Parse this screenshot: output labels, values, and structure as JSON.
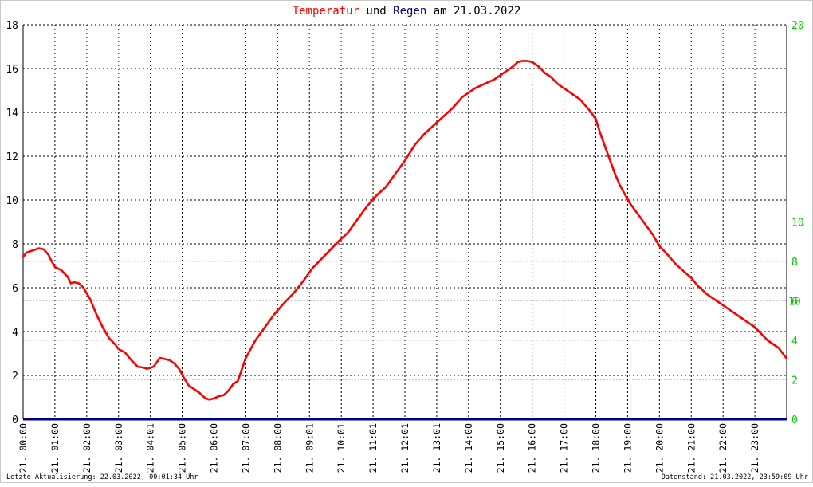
{
  "title": {
    "part1": "Temperatur",
    "part2": " und ",
    "part3": "Regen",
    "part4": " am 21.03.2022",
    "color1": "#ff0000",
    "color2": "#000000",
    "color3": "#000080",
    "color4": "#000000"
  },
  "footer": {
    "left": "Letzte Aktualisierung: 22.03.2022, 00:01:34 Uhr",
    "right": "Datenstand: 21.03.2022, 23:59:09 Uhr"
  },
  "colors": {
    "temperature": "#ff0000",
    "rain": "#00008b",
    "right_axis": "#00cc00",
    "left_axis": "#000000",
    "grid": "#000000",
    "grid_minor": "#c8c8c8"
  },
  "chart_data": {
    "type": "line",
    "x_tick_labels": [
      "21. 00:00",
      "21. 01:00",
      "21. 02:00",
      "21. 03:00",
      "21. 04:01",
      "21. 05:00",
      "21. 06:00",
      "21. 07:00",
      "21. 08:00",
      "21. 09:01",
      "21. 10:01",
      "21. 11:01",
      "21. 12:01",
      "21. 13:01",
      "21. 14:00",
      "21. 15:00",
      "21. 16:00",
      "21. 17:00",
      "21. 18:00",
      "21. 19:00",
      "21. 20:00",
      "21. 21:00",
      "21. 22:00",
      "21. 23:00"
    ],
    "xlim_hours": [
      0,
      24
    ],
    "y_left": {
      "lim": [
        0,
        18
      ],
      "ticks": [
        "0",
        "2",
        "4",
        "6",
        "8",
        "10",
        "12",
        "14",
        "16",
        "18"
      ]
    },
    "y_right": {
      "lim": [
        0,
        20
      ],
      "ticks": [
        "0",
        "2",
        "4",
        "6",
        "8",
        "10",
        "20"
      ],
      "tick_values": [
        0,
        2,
        4,
        6,
        8,
        10,
        20
      ],
      "overlap_label": {
        "text": "10",
        "value": 6
      }
    },
    "grid": true,
    "series": [
      {
        "axis": "left",
        "hours": [
          0,
          0.1,
          0.3,
          0.5,
          0.65,
          0.8,
          0.9,
          1.0,
          1.2,
          1.4,
          1.5,
          1.6,
          1.75,
          1.9,
          2.1,
          2.3,
          2.5,
          2.7,
          2.9,
          3.0,
          3.2,
          3.4,
          3.6,
          3.8,
          3.9,
          4.0,
          4.1,
          4.2,
          4.3,
          4.45,
          4.6,
          4.75,
          4.9,
          5.05,
          5.2,
          5.4,
          5.55,
          5.65,
          5.75,
          5.85,
          6.0,
          6.15,
          6.3,
          6.45,
          6.6,
          6.75,
          7.0,
          7.3,
          7.6,
          7.9,
          8.2,
          8.5,
          8.8,
          9.1,
          9.5,
          9.9,
          10.2,
          10.5,
          10.8,
          11.1,
          11.4,
          11.7,
          12.0,
          12.3,
          12.6,
          12.9,
          13.2,
          13.5,
          13.8,
          14.0,
          14.2,
          14.5,
          14.8,
          15.0,
          15.2,
          15.4,
          15.55,
          15.7,
          15.85,
          16.0,
          16.2,
          16.4,
          16.6,
          16.8,
          17.0,
          17.2,
          17.5,
          17.8,
          18.0,
          18.15,
          18.3,
          18.45,
          18.6,
          18.75,
          18.9,
          19.05,
          19.2,
          19.4,
          19.6,
          19.8,
          20.0,
          20.2,
          20.5,
          20.8,
          21.0,
          21.2,
          21.5,
          21.8,
          22.1,
          22.4,
          22.7,
          23.0,
          23.2,
          23.4,
          23.6,
          23.75,
          23.85,
          23.98
        ],
        "values": [
          7.4,
          7.6,
          7.7,
          7.8,
          7.75,
          7.5,
          7.2,
          6.95,
          6.8,
          6.5,
          6.2,
          6.25,
          6.2,
          6.0,
          5.5,
          4.8,
          4.2,
          3.7,
          3.4,
          3.2,
          3.05,
          2.7,
          2.4,
          2.35,
          2.3,
          2.35,
          2.4,
          2.6,
          2.8,
          2.75,
          2.7,
          2.55,
          2.3,
          1.9,
          1.55,
          1.35,
          1.2,
          1.05,
          0.95,
          0.9,
          0.95,
          1.05,
          1.1,
          1.3,
          1.6,
          1.75,
          2.8,
          3.6,
          4.2,
          4.8,
          5.3,
          5.75,
          6.3,
          6.9,
          7.5,
          8.1,
          8.5,
          9.1,
          9.7,
          10.2,
          10.6,
          11.2,
          11.8,
          12.5,
          13.0,
          13.4,
          13.8,
          14.2,
          14.7,
          14.9,
          15.1,
          15.3,
          15.5,
          15.7,
          15.9,
          16.1,
          16.3,
          16.35,
          16.35,
          16.3,
          16.1,
          15.8,
          15.6,
          15.3,
          15.1,
          14.9,
          14.6,
          14.1,
          13.7,
          13.0,
          12.4,
          11.8,
          11.2,
          10.7,
          10.3,
          9.9,
          9.6,
          9.2,
          8.8,
          8.4,
          7.9,
          7.6,
          7.1,
          6.7,
          6.45,
          6.1,
          5.7,
          5.4,
          5.1,
          4.8,
          4.5,
          4.2,
          3.9,
          3.6,
          3.4,
          3.25,
          3.05,
          2.8
        ]
      },
      {
        "axis": "right",
        "hours": [
          0,
          24
        ],
        "values": [
          0,
          0
        ]
      }
    ]
  }
}
